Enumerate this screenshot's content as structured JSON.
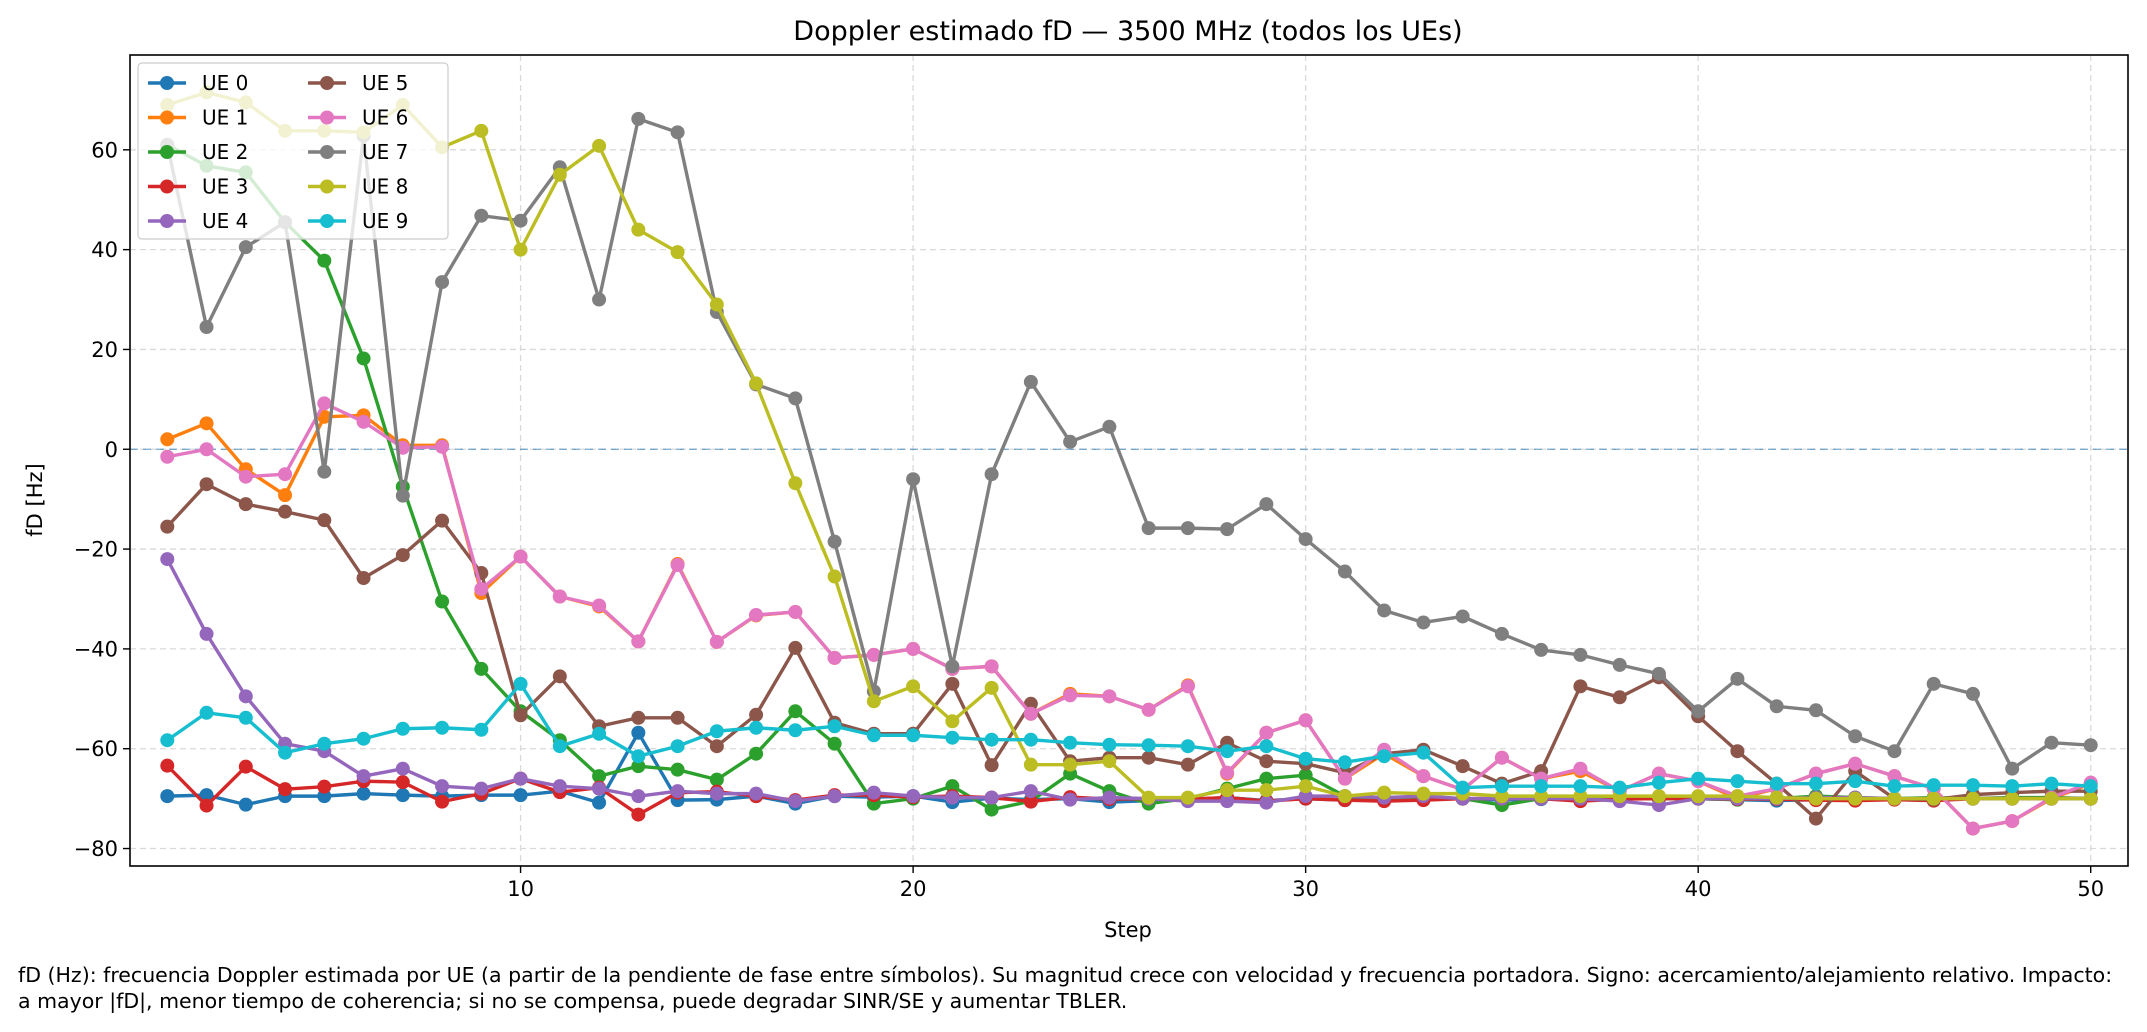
{
  "chart_data": {
    "type": "line",
    "title": "Doppler estimado fD — 3500 MHz (todos los UEs)",
    "xlabel": "Step",
    "ylabel": "fD [Hz]",
    "xlim": [
      0.05,
      50.95
    ],
    "ylim": [
      -83.5,
      79
    ],
    "xticks": [
      10,
      20,
      30,
      40,
      50
    ],
    "yticks": [
      -80,
      -60,
      -40,
      -20,
      0,
      20,
      40,
      60
    ],
    "grid": true,
    "legend": "top-left",
    "reference_line": {
      "y": 0,
      "color": "#1f77b4"
    },
    "x": [
      1,
      2,
      3,
      4,
      5,
      6,
      7,
      8,
      9,
      10,
      11,
      12,
      13,
      14,
      15,
      16,
      17,
      18,
      19,
      20,
      21,
      22,
      23,
      24,
      25,
      26,
      27,
      28,
      29,
      30,
      31,
      32,
      33,
      34,
      35,
      36,
      37,
      38,
      39,
      40,
      41,
      42,
      43,
      44,
      45,
      46,
      47,
      48,
      49,
      50
    ],
    "series": [
      {
        "name": "UE 0",
        "color": "#1f77b4",
        "values": [
          -69.5,
          -69.3,
          -71.2,
          -69.5,
          -69.5,
          -69,
          -69.3,
          -69.5,
          -69.3,
          -69.3,
          -68.5,
          -70.8,
          -56.8,
          -70.3,
          -70.2,
          -69.5,
          -71,
          -69.5,
          -69.7,
          -69.5,
          -70.7,
          -69.9,
          -70.2,
          -70,
          -70.7,
          -70.4,
          -70.2,
          -69.8,
          -70.4,
          -70,
          -70.3,
          -70,
          -70,
          -70,
          -70.3,
          -70.1,
          -70.2,
          -70,
          -70,
          -70,
          -70.2,
          -70.4,
          -70.2,
          -70,
          -70,
          -70,
          -70,
          -70,
          -70,
          -70
        ]
      },
      {
        "name": "UE 1",
        "color": "#ff7f0e",
        "values": [
          2,
          5.2,
          -4,
          -9.2,
          6.5,
          6.8,
          0.8,
          0.8,
          -28.8,
          -21.5,
          -29.5,
          -31.5,
          -38.5,
          -23,
          -38.6,
          -33.3,
          -32.6,
          -41.8,
          -41.2,
          -40,
          -44,
          -43.5,
          -53,
          -49,
          -49.5,
          -52.2,
          -47.3,
          -65,
          -56.8,
          -54.3,
          -66,
          -61,
          -65.5,
          -68.2,
          -61.8,
          -66,
          -64.5,
          -68.5,
          -65,
          -66.5,
          -70,
          -68,
          -65,
          -63,
          -65.5,
          -68,
          -76,
          -74.5,
          -70,
          -67
        ]
      },
      {
        "name": "UE 2",
        "color": "#2ca02c",
        "values": [
          61,
          56.8,
          55.5,
          45.5,
          37.8,
          18.2,
          -7.5,
          -30.5,
          -44,
          -52.5,
          -58.3,
          -65.5,
          -63.5,
          -64.2,
          -66.2,
          -61,
          -52.5,
          -59,
          -71,
          -70,
          -67.5,
          -72.2,
          -70.5,
          -65,
          -68.5,
          -71,
          -70,
          -68,
          -66,
          -65.3,
          -69.5,
          -70,
          -70,
          -70,
          -71.3,
          -70,
          -70.2,
          -70,
          -70,
          -70,
          -70.2,
          -70,
          -69.5,
          -69.8,
          -70,
          -69.8,
          -70,
          -69.8,
          -69.8,
          -70
        ]
      },
      {
        "name": "UE 3",
        "color": "#d62728",
        "values": [
          -63.4,
          -71.4,
          -63.6,
          -68.1,
          -67.6,
          -66.5,
          -66.7,
          -70.6,
          -69,
          -66,
          -68.7,
          -67.8,
          -73.2,
          -68.8,
          -68.6,
          -69.5,
          -70.3,
          -69.3,
          -69.3,
          -69.7,
          -69.5,
          -69.8,
          -70.6,
          -69.7,
          -70.1,
          -70,
          -70.1,
          -69.8,
          -70.5,
          -70,
          -70.3,
          -70.5,
          -70.3,
          -70,
          -70,
          -70,
          -70.5,
          -70.1,
          -70,
          -70,
          -70.1,
          -70.1,
          -70.3,
          -70.4,
          -70.2,
          -70.4,
          -70,
          -70,
          -70,
          -70
        ]
      },
      {
        "name": "UE 4",
        "color": "#9467bd",
        "values": [
          -22,
          -37,
          -49.5,
          -59,
          -60.5,
          -65.5,
          -64,
          -67.5,
          -68,
          -66,
          -67.5,
          -68,
          -69.5,
          -68.5,
          -69,
          -69,
          -70.5,
          -69.5,
          -68.8,
          -69.5,
          -69.8,
          -69.8,
          -68.5,
          -70.2,
          -69.8,
          -70,
          -70.5,
          -70.5,
          -70.8,
          -69.5,
          -69.5,
          -69.8,
          -69.5,
          -70,
          -70,
          -70,
          -70,
          -70.5,
          -71.3,
          -70,
          -70,
          -70,
          -69.8,
          -69.8,
          -70,
          -70,
          -70,
          -70,
          -70,
          -70
        ]
      },
      {
        "name": "UE 5",
        "color": "#8c564b",
        "values": [
          -15.5,
          -7,
          -11,
          -12.5,
          -14.2,
          -25.8,
          -21.2,
          -14.3,
          -24.8,
          -53.3,
          -45.5,
          -55.5,
          -53.8,
          -53.8,
          -59.5,
          -53.2,
          -39.8,
          -54.8,
          -57,
          -57,
          -47,
          -63.3,
          -51,
          -62.5,
          -61.8,
          -61.8,
          -63.2,
          -58.8,
          -62.5,
          -63,
          -64.8,
          -61,
          -60.2,
          -63.5,
          -67,
          -64.5,
          -47.5,
          -49.7,
          -45.7,
          -53.5,
          -60.5,
          -67,
          -74,
          -64.5,
          -70,
          -70.2,
          -69.2,
          -68.8,
          -68.5,
          -68.5
        ]
      },
      {
        "name": "UE 6",
        "color": "#e377c2",
        "values": [
          -1.5,
          0,
          -5.5,
          -5,
          9.2,
          5.5,
          0.3,
          0.5,
          -28,
          -21.5,
          -29.5,
          -31.3,
          -38.5,
          -23.2,
          -38.6,
          -33.2,
          -32.6,
          -41.8,
          -41.2,
          -40,
          -44,
          -43.5,
          -53,
          -49.3,
          -49.5,
          -52.2,
          -47.5,
          -64.8,
          -56.8,
          -54.3,
          -66,
          -60.2,
          -65.5,
          -68.2,
          -61.8,
          -66,
          -64,
          -68.5,
          -65,
          -66.5,
          -69.5,
          -68,
          -65,
          -63,
          -65.5,
          -68,
          -76,
          -74.5,
          -69.8,
          -66.8
        ]
      },
      {
        "name": "UE 7",
        "color": "#7f7f7f",
        "values": [
          61,
          24.5,
          40.5,
          45.5,
          -4.5,
          62.8,
          -9.3,
          33.5,
          46.8,
          45.8,
          56.5,
          30,
          66.2,
          63.5,
          27.5,
          13,
          10.2,
          -18.5,
          -48.5,
          -6,
          -43.5,
          -5,
          13.5,
          1.5,
          4.5,
          -15.8,
          -15.8,
          -16,
          -11,
          -18,
          -24.5,
          -32.3,
          -34.7,
          -33.5,
          -37,
          -40.2,
          -41.2,
          -43.2,
          -45,
          -52.5,
          -46,
          -51.5,
          -52.3,
          -57.5,
          -60.5,
          -47,
          -49,
          -64,
          -58.8,
          -59.3
        ]
      },
      {
        "name": "UE 8",
        "color": "#bcbd22",
        "values": [
          69,
          71.5,
          69.5,
          63.8,
          63.8,
          63.5,
          69,
          60.5,
          63.8,
          40,
          55,
          60.8,
          44,
          39.5,
          29,
          13.2,
          -6.8,
          -25.5,
          -50.5,
          -47.5,
          -54.5,
          -47.8,
          -63.2,
          -63.2,
          -62.5,
          -69.8,
          -69.8,
          -68.3,
          -68.3,
          -67.5,
          -69.5,
          -68.8,
          -69,
          -69,
          -69.5,
          -69.5,
          -69.5,
          -69.5,
          -69.5,
          -69.5,
          -69.5,
          -69.8,
          -70,
          -70,
          -70,
          -70,
          -70,
          -70,
          -70,
          -70
        ]
      },
      {
        "name": "UE 9",
        "color": "#17becf",
        "values": [
          -58.3,
          -52.8,
          -53.8,
          -60.8,
          -59,
          -58,
          -56,
          -55.8,
          -56.2,
          -47,
          -59.5,
          -57,
          -61.5,
          -59.5,
          -56.5,
          -55.8,
          -56.3,
          -55.5,
          -57.3,
          -57.3,
          -57.8,
          -58.2,
          -58.2,
          -58.8,
          -59.2,
          -59.3,
          -59.5,
          -60.5,
          -59.5,
          -62,
          -62.7,
          -61.5,
          -60.8,
          -67.8,
          -67.5,
          -67.5,
          -67.5,
          -67.8,
          -66.8,
          -66,
          -66.5,
          -67,
          -67,
          -66.5,
          -67.5,
          -67.3,
          -67.3,
          -67.5,
          -67,
          -67.5
        ]
      }
    ]
  },
  "caption": "fD (Hz): frecuencia Doppler estimada por UE (a partir de la pendiente de fase entre símbolos). Su magnitud crece con velocidad y frecuencia portadora. Signo: acercamiento/alejamiento relativo. Impacto: a mayor |fD|, menor tiempo de coherencia; si no se compensa, puede degradar SINR/SE y aumentar TBLER."
}
